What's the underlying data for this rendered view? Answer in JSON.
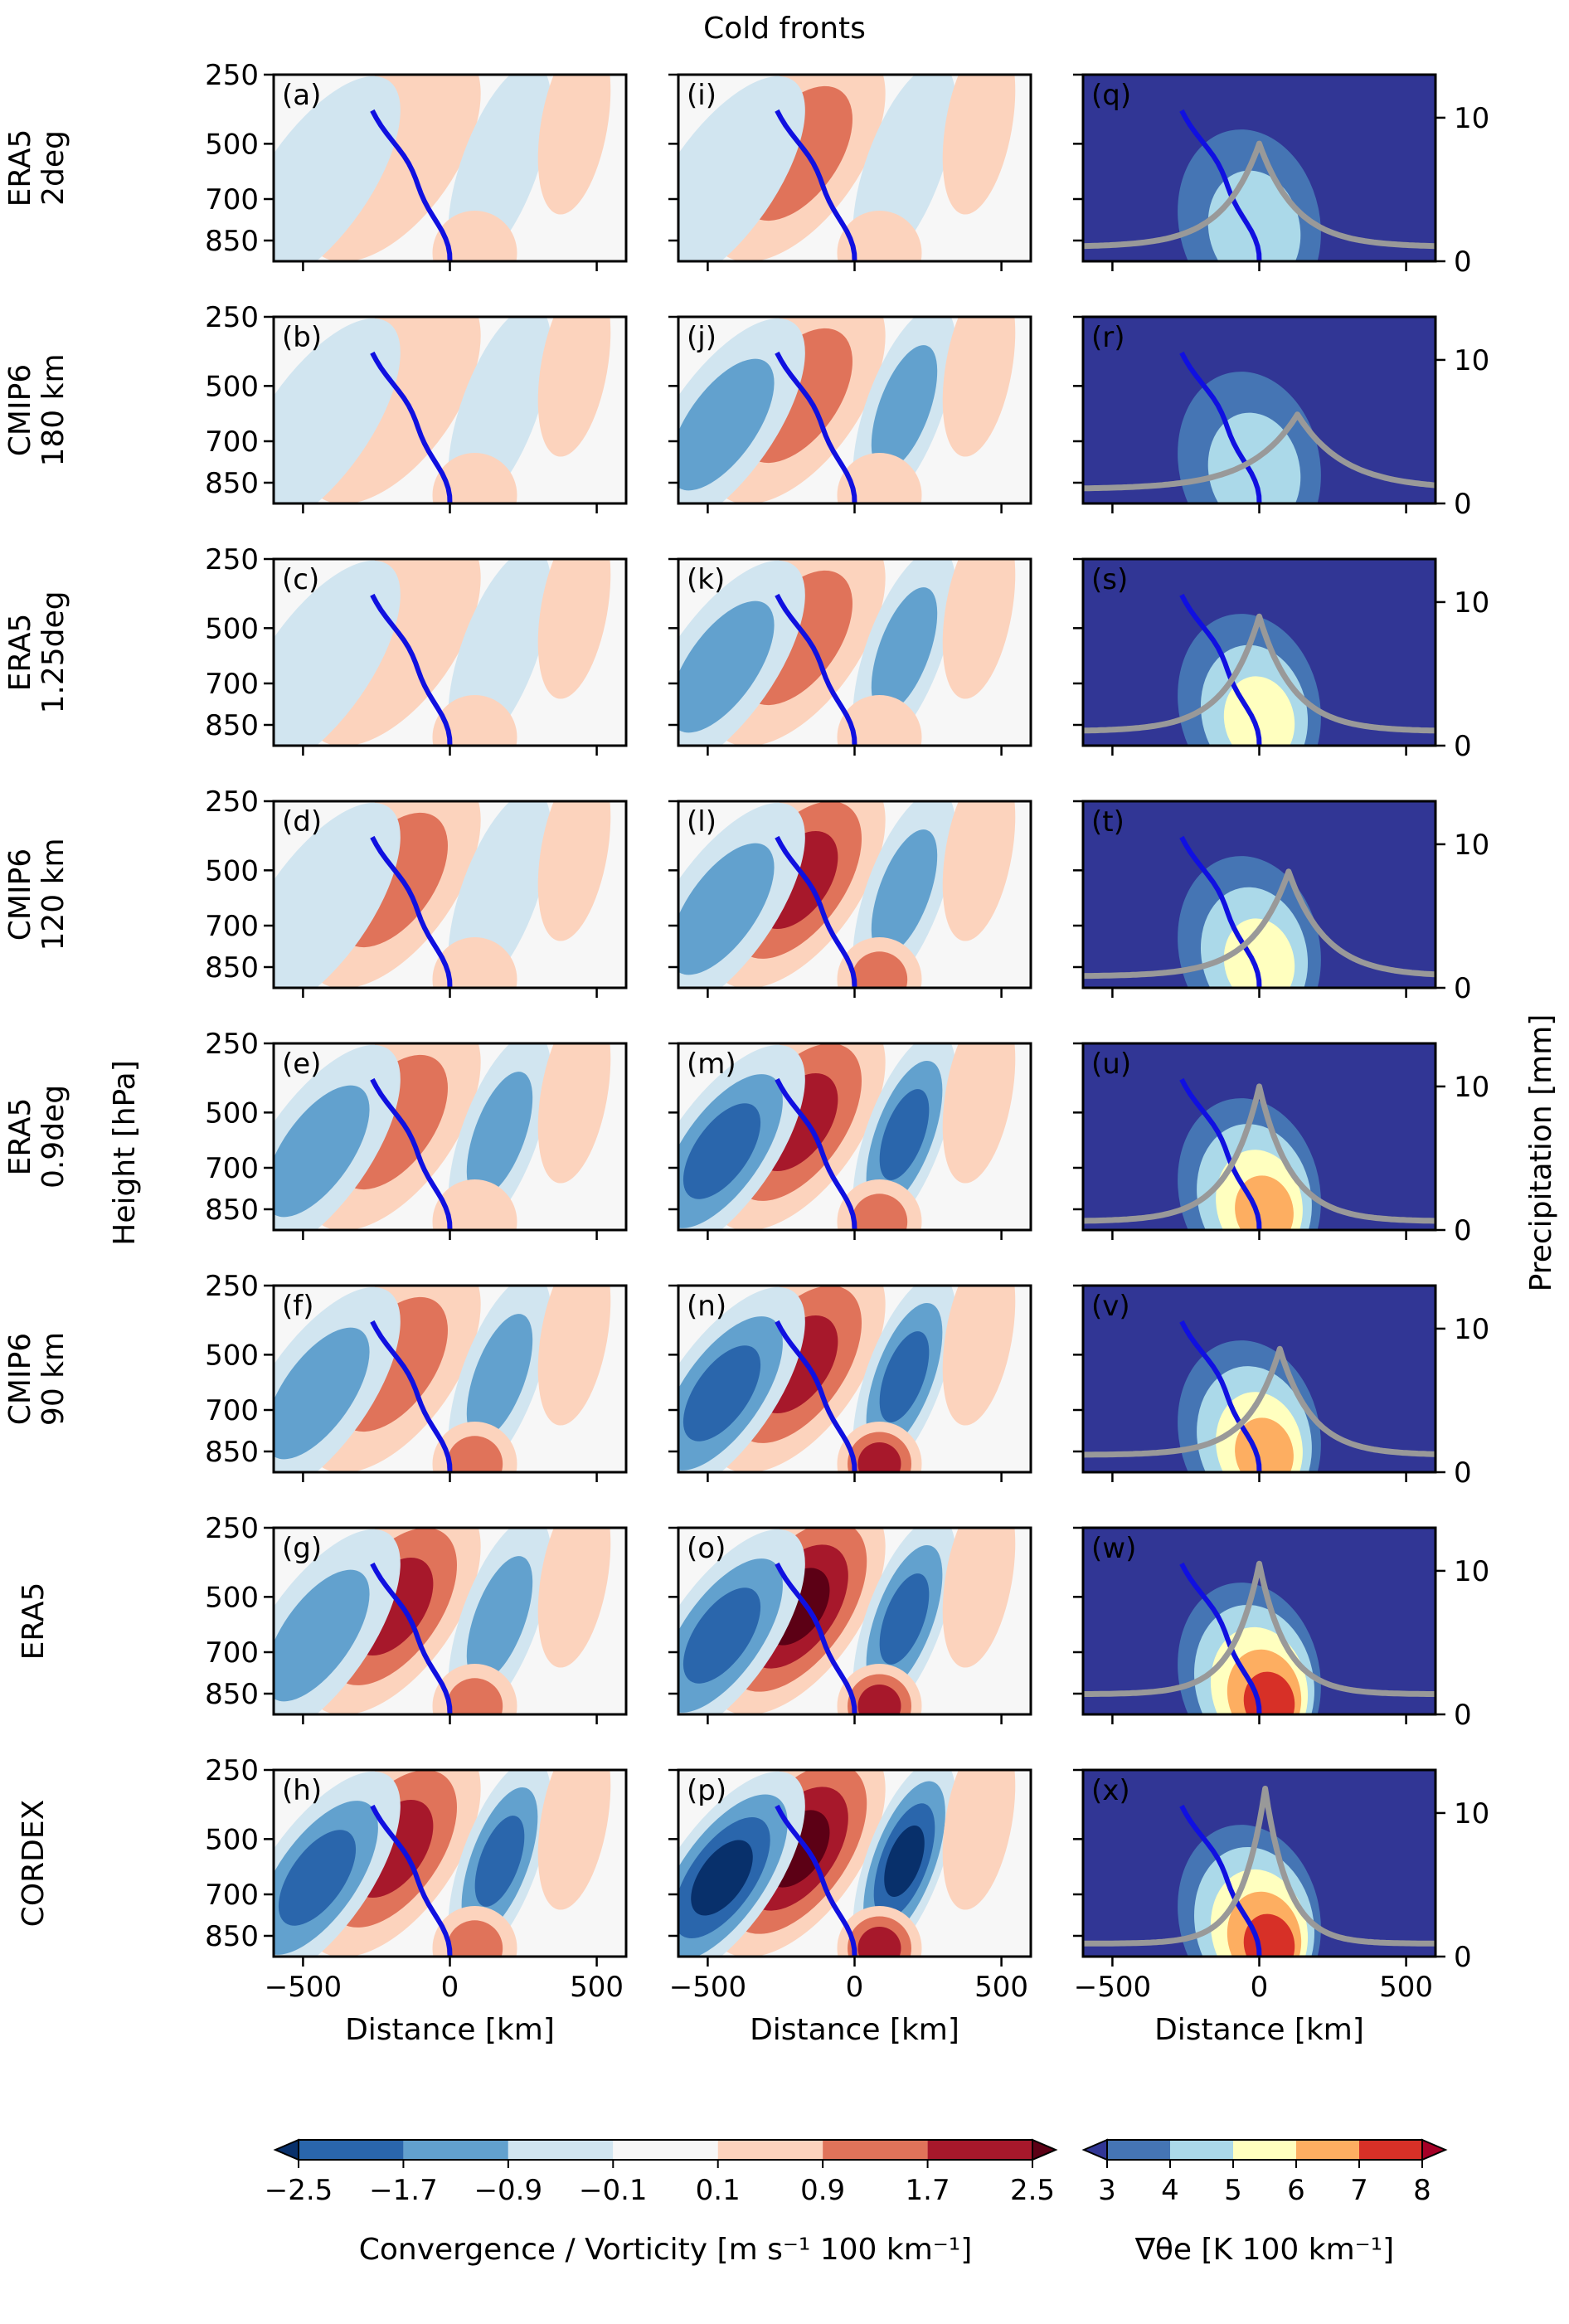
{
  "chart_data": {
    "type": "heatmap",
    "title": "Cold fronts",
    "rows": [
      {
        "label_lines": [
          "ERA5",
          "2deg"
        ]
      },
      {
        "label_lines": [
          "CMIP6",
          "180 km"
        ]
      },
      {
        "label_lines": [
          "ERA5",
          "1.25deg"
        ]
      },
      {
        "label_lines": [
          "CMIP6",
          "120 km"
        ]
      },
      {
        "label_lines": [
          "ERA5",
          "0.9deg"
        ]
      },
      {
        "label_lines": [
          "CMIP6",
          "90 km"
        ]
      },
      {
        "label_lines": [
          "ERA5"
        ]
      },
      {
        "label_lines": [
          "CORDEX"
        ]
      }
    ],
    "columns": [
      {
        "quantity": "Convergence",
        "panels": [
          "(a)",
          "(b)",
          "(c)",
          "(d)",
          "(e)",
          "(f)",
          "(g)",
          "(h)"
        ]
      },
      {
        "quantity": "Vorticity",
        "panels": [
          "(i)",
          "(j)",
          "(k)",
          "(l)",
          "(m)",
          "(n)",
          "(o)",
          "(p)"
        ]
      },
      {
        "quantity": "Equivalent potential temperature gradient with precipitation",
        "panels": [
          "(q)",
          "(r)",
          "(s)",
          "(t)",
          "(u)",
          "(v)",
          "(w)",
          "(x)"
        ]
      }
    ],
    "xlabel": "Distance [km]",
    "xlim": [
      -600,
      600
    ],
    "xticks": [
      -500,
      0,
      500
    ],
    "xtick_labels": [
      "−500",
      "0",
      "500"
    ],
    "ylabel": "Height [hPa]",
    "ylim": [
      250,
      925
    ],
    "yticks": [
      250,
      500,
      700,
      850
    ],
    "ytick_labels": [
      "250",
      "500",
      "700",
      "850"
    ],
    "y2label": "Precipitation [mm]",
    "y2lim": [
      0,
      13
    ],
    "y2ticks": [
      0,
      10
    ],
    "y2tick_labels": [
      "0",
      "10"
    ],
    "front_line": {
      "color": "#1010e0",
      "description": "frontal position line, tilting rearward with height"
    },
    "precip_line": {
      "color": "#999999",
      "peaks": [
        {
          "x": 0,
          "max": 8.2,
          "width": 150
        },
        {
          "x": 130,
          "max": 6.2,
          "width": 190
        },
        {
          "x": 0,
          "max": 9.0,
          "width": 140
        },
        {
          "x": 100,
          "max": 8.1,
          "width": 150
        },
        {
          "x": 0,
          "max": 10.0,
          "width": 130
        },
        {
          "x": 70,
          "max": 8.6,
          "width": 130
        },
        {
          "x": 0,
          "max": 10.5,
          "width": 110
        },
        {
          "x": 20,
          "max": 11.7,
          "width": 95
        }
      ],
      "baseline": [
        1.0,
        1.0,
        1.0,
        0.8,
        0.6,
        1.2,
        1.4,
        0.9
      ]
    },
    "gradient_intensity": [
      4.8,
      4.6,
      5.5,
      5.1,
      6.6,
      6.5,
      7.5,
      7.3
    ],
    "colorbar_div": {
      "label": "Convergence / Vorticity [m s⁻¹ 100 km⁻¹]",
      "levels": [
        -2.5,
        -1.7,
        -0.9,
        -0.1,
        0.1,
        0.9,
        1.7,
        2.5
      ],
      "tick_labels": [
        "−2.5",
        "−1.7",
        "−0.9",
        "−0.1",
        "0.1",
        "0.9",
        "1.7",
        "2.5"
      ],
      "colors": [
        "#08306b",
        "#2a66ac",
        "#62a1ce",
        "#d1e5f0",
        "#f7f7f7",
        "#fcd3bd",
        "#e0735a",
        "#a7182b",
        "#5c0015"
      ],
      "extend": "both"
    },
    "colorbar_seq": {
      "label": "∇θe [K 100 km⁻¹]",
      "levels": [
        3,
        4,
        5,
        6,
        7,
        8
      ],
      "tick_labels": [
        "3",
        "4",
        "5",
        "6",
        "7",
        "8"
      ],
      "colors": [
        "#313695",
        "#4575b4",
        "#abd9e9",
        "#ffffbf",
        "#fdae61",
        "#d73027",
        "#a50026"
      ],
      "extend": "both"
    }
  }
}
